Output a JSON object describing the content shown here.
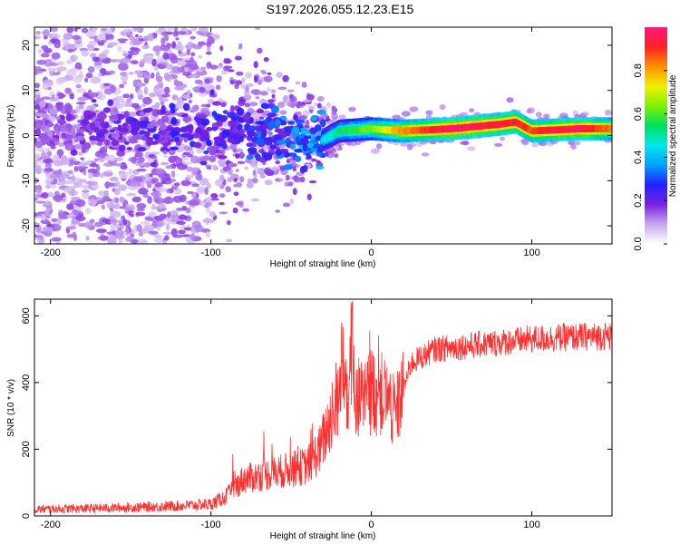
{
  "title": "S197.2026.055.12.23.E15",
  "chart_data": [
    {
      "type": "heatmap",
      "panel": "spectrogram",
      "xlabel": "Height of straight line (km)",
      "ylabel": "Frequency (Hz)",
      "xlim": [
        -210,
        150
      ],
      "ylim": [
        -24,
        24
      ],
      "xticks": [
        -200,
        -100,
        0,
        100
      ],
      "yticks": [
        -20,
        -10,
        0,
        10,
        20
      ],
      "colorbar": {
        "label": "Normalized spectral amplitude",
        "range": [
          0,
          1
        ],
        "ticks": [
          0.0,
          0.2,
          0.4,
          0.6,
          0.8
        ],
        "colormap": [
          "#ffffff",
          "#c8a8f0",
          "#7a20e0",
          "#2020ff",
          "#00a0ff",
          "#00e8e8",
          "#00e060",
          "#80f000",
          "#f0f000",
          "#ff9000",
          "#ff2020",
          "#ff1880"
        ]
      },
      "description_points": [
        {
          "x": -200,
          "f": 2,
          "amp": 0.15
        },
        {
          "x": -150,
          "f": 1,
          "amp": 0.2
        },
        {
          "x": -100,
          "f": 1,
          "amp": 0.25
        },
        {
          "x": -60,
          "f": 0,
          "amp": 0.3
        },
        {
          "x": -35,
          "f": -2,
          "amp": 0.35
        },
        {
          "x": -20,
          "f": 1,
          "amp": 0.5
        },
        {
          "x": 0,
          "f": 1.5,
          "amp": 0.6
        },
        {
          "x": 20,
          "f": 1,
          "amp": 0.8
        },
        {
          "x": 50,
          "f": 1.5,
          "amp": 0.95
        },
        {
          "x": 80,
          "f": 2.5,
          "amp": 0.9
        },
        {
          "x": 90,
          "f": 3,
          "amp": 0.9
        },
        {
          "x": 100,
          "f": 1,
          "amp": 0.85
        },
        {
          "x": 130,
          "f": 1.5,
          "amp": 0.95
        },
        {
          "x": 150,
          "f": 1.5,
          "amp": 0.8
        }
      ]
    },
    {
      "type": "line",
      "panel": "snr",
      "xlabel": "Height of straight line (km)",
      "ylabel": "SNR (10 * v/v)",
      "xlim": [
        -210,
        150
      ],
      "ylim": [
        0,
        650
      ],
      "xticks": [
        -200,
        -100,
        0,
        100
      ],
      "yticks": [
        0,
        200,
        400,
        600
      ],
      "series": [
        {
          "name": "SNR",
          "color": "#ff3030",
          "x": [
            -210,
            -180,
            -150,
            -120,
            -100,
            -90,
            -80,
            -70,
            -60,
            -50,
            -40,
            -32,
            -25,
            -18,
            -12,
            -5,
            0,
            10,
            15,
            25,
            40,
            60,
            80,
            100,
            120,
            150
          ],
          "values": [
            20,
            22,
            25,
            30,
            35,
            60,
            110,
            120,
            130,
            140,
            150,
            200,
            300,
            380,
            400,
            330,
            380,
            350,
            300,
            460,
            500,
            510,
            520,
            530,
            535,
            540
          ]
        }
      ]
    }
  ]
}
